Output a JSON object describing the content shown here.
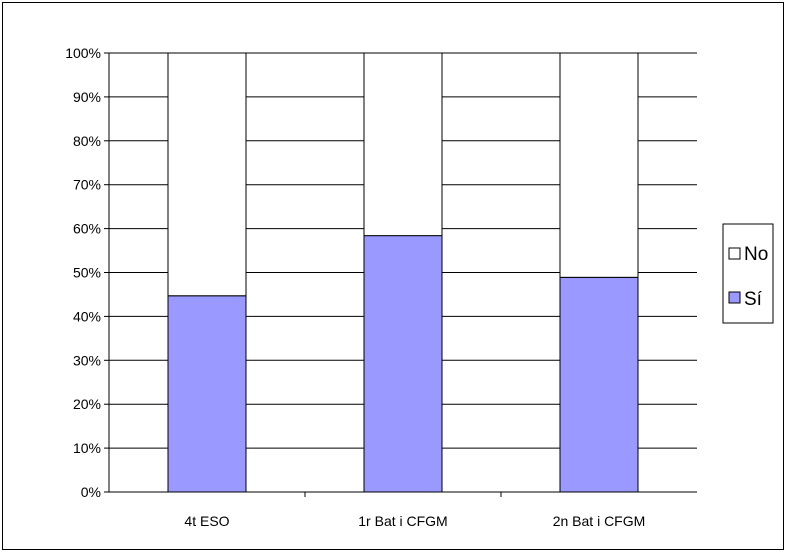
{
  "chart_data": {
    "type": "bar",
    "stacked": true,
    "percent": true,
    "categories": [
      "4t ESO",
      "1r Bat i CFGM",
      "2n Bat i CFGM"
    ],
    "series": [
      {
        "name": "Sí",
        "values": [
          44.7,
          58.4,
          48.9
        ],
        "color": "#9999ff"
      },
      {
        "name": "No",
        "values": [
          55.3,
          41.6,
          51.1
        ],
        "color": "#ffffff"
      }
    ],
    "ylim": [
      0,
      100
    ],
    "yticks": [
      "0%",
      "10%",
      "20%",
      "30%",
      "40%",
      "50%",
      "60%",
      "70%",
      "80%",
      "90%",
      "100%"
    ],
    "grid": true,
    "legend": {
      "position": "right",
      "entries": [
        {
          "label": "No",
          "color": "#ffffff"
        },
        {
          "label": "Sí",
          "color": "#9999ff"
        }
      ]
    }
  }
}
